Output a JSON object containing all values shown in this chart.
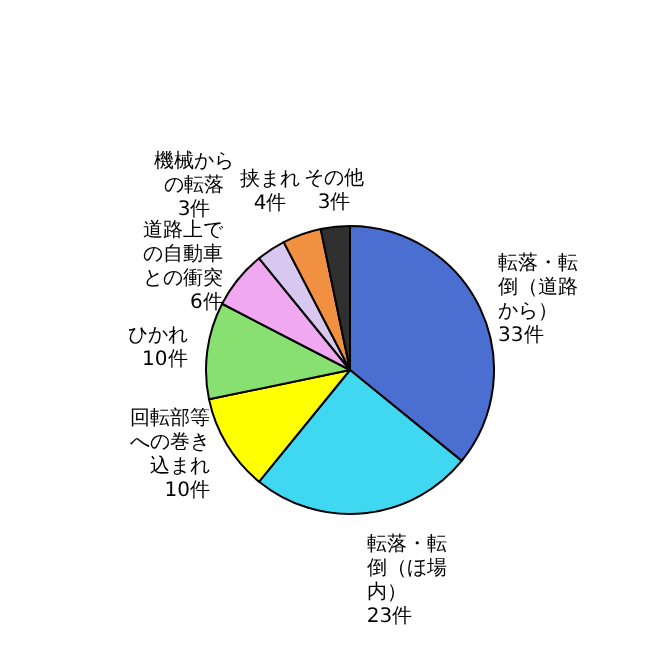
{
  "chart_data": {
    "type": "pie",
    "categories": [
      "転落・転倒（道路から）",
      "転落・転倒（ほ場内）",
      "回転部等への巻き込まれ",
      "ひかれ",
      "道路上での自動車との衝突",
      "機械からの転落",
      "挟まれ",
      "その他"
    ],
    "values": [
      33,
      23,
      10,
      10,
      6,
      3,
      4,
      3
    ],
    "value_labels": [
      "33件",
      "23件",
      "10件",
      "10件",
      "6件",
      "3件",
      "4件",
      "3件"
    ],
    "colors": [
      "#4a6fd0",
      "#40d8f0",
      "#ffff00",
      "#88e070",
      "#f0a8f0",
      "#d8c8f0",
      "#f09040",
      "#303030"
    ]
  }
}
